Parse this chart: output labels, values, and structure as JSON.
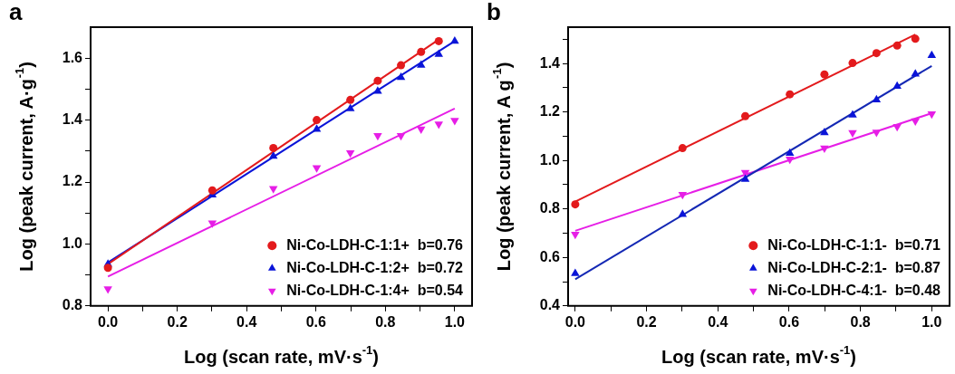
{
  "chart_data": [
    {
      "type": "scatter",
      "title": "a",
      "xlabel": "Log (scan rate, mV·s$^{-1}$)",
      "ylabel": "Log (peak current, A·g$^{-1}$)",
      "legend": "bottom right",
      "grid": false,
      "xlim": [
        -0.05,
        1.05
      ],
      "ylim": [
        0.8,
        1.7
      ],
      "xticks": [
        {
          "value": 0,
          "label": "0.0"
        },
        {
          "value": 0.1,
          "label": null
        },
        {
          "value": 0.2,
          "label": "0.2"
        },
        {
          "value": 0.3,
          "label": null
        },
        {
          "value": 0.4,
          "label": "0.4"
        },
        {
          "value": 0.5,
          "label": null
        },
        {
          "value": 0.6,
          "label": "0.6"
        },
        {
          "value": 0.7,
          "label": null
        },
        {
          "value": 0.8,
          "label": "0.8"
        },
        {
          "value": 0.9,
          "label": null
        },
        {
          "value": 1,
          "label": "1.0"
        }
      ],
      "yticks": [
        {
          "value": 0.8,
          "label": "0.8"
        },
        {
          "value": 0.9,
          "label": null
        },
        {
          "value": 1,
          "label": "1.0"
        },
        {
          "value": 1.1,
          "label": null
        },
        {
          "value": 1.2,
          "label": "1.2"
        },
        {
          "value": 1.3,
          "label": null
        },
        {
          "value": 1.4,
          "label": "1.4"
        },
        {
          "value": 1.5,
          "label": null
        },
        {
          "value": 1.6,
          "label": "1.6"
        }
      ],
      "series": [
        {
          "name": "Ni-Co-LDH-C-1:1+  b=0.76",
          "color": "#e31a1c",
          "marker": "circle",
          "x": [
            0,
            0.301,
            0.477,
            0.602,
            0.699,
            0.778,
            0.845,
            0.903,
            0.954
          ],
          "values": [
            0.923,
            1.173,
            1.31,
            1.4,
            1.465,
            1.527,
            1.577,
            1.62,
            1.655
          ]
        },
        {
          "name": "Ni-Co-LDH-C-1:2+  b=0.72",
          "color": "#0a14d8",
          "marker": "triangle",
          "x": [
            0,
            0.301,
            0.477,
            0.602,
            0.699,
            0.778,
            0.845,
            0.903,
            0.954,
            1
          ],
          "values": [
            0.935,
            1.158,
            1.283,
            1.37,
            1.437,
            1.493,
            1.538,
            1.577,
            1.612,
            1.655
          ]
        },
        {
          "name": "Ni-Co-LDH-C-1:4+  b=0.54",
          "color": "#e61ee6",
          "marker": "triangle-down",
          "x": [
            0,
            0.301,
            0.477,
            0.602,
            0.699,
            0.778,
            0.845,
            0.903,
            0.954,
            1
          ],
          "values": [
            0.855,
            1.068,
            1.179,
            1.246,
            1.294,
            1.35,
            1.35,
            1.371,
            1.387,
            1.399
          ]
        },
        {
          "type": "line",
          "color": "#e31a1c",
          "marker": "none",
          "x": [
            0,
            0.954
          ],
          "values": [
            0.935,
            1.66
          ]
        },
        {
          "type": "line",
          "color": "#0a14d8",
          "marker": "none",
          "x": [
            0,
            1
          ],
          "values": [
            0.94,
            1.655
          ]
        },
        {
          "type": "line",
          "color": "#e61ee6",
          "marker": "none",
          "x": [
            0,
            1
          ],
          "values": [
            0.895,
            1.437
          ]
        }
      ]
    },
    {
      "type": "scatter",
      "title": "b",
      "xlabel": "Log (scan rate, mV·s$^{-1}$)",
      "ylabel": "Log (peak current, A g$^{-1}$)",
      "legend": "bottom right",
      "grid": false,
      "xlim": [
        -0.02,
        1.05
      ],
      "ylim": [
        0.4,
        1.55
      ],
      "xticks": [
        {
          "value": 0,
          "label": "0.0"
        },
        {
          "value": 0.1,
          "label": null
        },
        {
          "value": 0.2,
          "label": "0.2"
        },
        {
          "value": 0.3,
          "label": null
        },
        {
          "value": 0.4,
          "label": "0.4"
        },
        {
          "value": 0.5,
          "label": null
        },
        {
          "value": 0.6,
          "label": "0.6"
        },
        {
          "value": 0.7,
          "label": null
        },
        {
          "value": 0.8,
          "label": "0.8"
        },
        {
          "value": 0.9,
          "label": null
        },
        {
          "value": 1,
          "label": "1.0"
        }
      ],
      "yticks": [
        {
          "value": 0.4,
          "label": "0.4"
        },
        {
          "value": 0.5,
          "label": null
        },
        {
          "value": 0.6,
          "label": "0.6"
        },
        {
          "value": 0.7,
          "label": null
        },
        {
          "value": 0.8,
          "label": "0.8"
        },
        {
          "value": 0.9,
          "label": null
        },
        {
          "value": 1,
          "label": "1.0"
        },
        {
          "value": 1.1,
          "label": null
        },
        {
          "value": 1.2,
          "label": "1.2"
        },
        {
          "value": 1.3,
          "label": null
        },
        {
          "value": 1.4,
          "label": "1.4"
        },
        {
          "value": 1.5,
          "label": null
        }
      ],
      "series": [
        {
          "name": "Ni-Co-LDH-C-1:1-  b=0.71",
          "color": "#e31a1c",
          "marker": "circle",
          "x": [
            0,
            0.301,
            0.477,
            0.602,
            0.699,
            0.778,
            0.845,
            0.903,
            0.954
          ],
          "values": [
            0.819,
            1.051,
            1.183,
            1.273,
            1.355,
            1.402,
            1.443,
            1.474,
            1.502
          ]
        },
        {
          "name": "Ni-Co-LDH-C-2:1-  b=0.87",
          "color": "#0a14d8",
          "marker": "triangle",
          "x": [
            0,
            0.301,
            0.477,
            0.602,
            0.699,
            0.778,
            0.845,
            0.903,
            0.954,
            1
          ],
          "values": [
            0.534,
            0.778,
            0.922,
            1.03,
            1.115,
            1.188,
            1.25,
            1.306,
            1.357,
            1.433
          ]
        },
        {
          "name": "Ni-Co-LDH-C-4:1-  b=0.48",
          "color": "#e61ee6",
          "marker": "triangle-down",
          "x": [
            0,
            0.301,
            0.477,
            0.602,
            0.699,
            0.778,
            0.845,
            0.903,
            0.954,
            1
          ],
          "values": [
            0.695,
            0.86,
            0.95,
            1.005,
            1.051,
            1.115,
            1.117,
            1.14,
            1.163,
            1.192
          ]
        },
        {
          "type": "line",
          "color": "#e31a1c",
          "marker": "none",
          "x": [
            0,
            0.954
          ],
          "values": [
            0.83,
            1.52
          ]
        },
        {
          "type": "line",
          "color": "#1428b4",
          "marker": "none",
          "x": [
            0,
            1
          ],
          "values": [
            0.51,
            1.39
          ]
        },
        {
          "type": "line",
          "color": "#e61ee6",
          "marker": "none",
          "x": [
            0,
            1
          ],
          "values": [
            0.71,
            1.195
          ]
        }
      ]
    }
  ]
}
